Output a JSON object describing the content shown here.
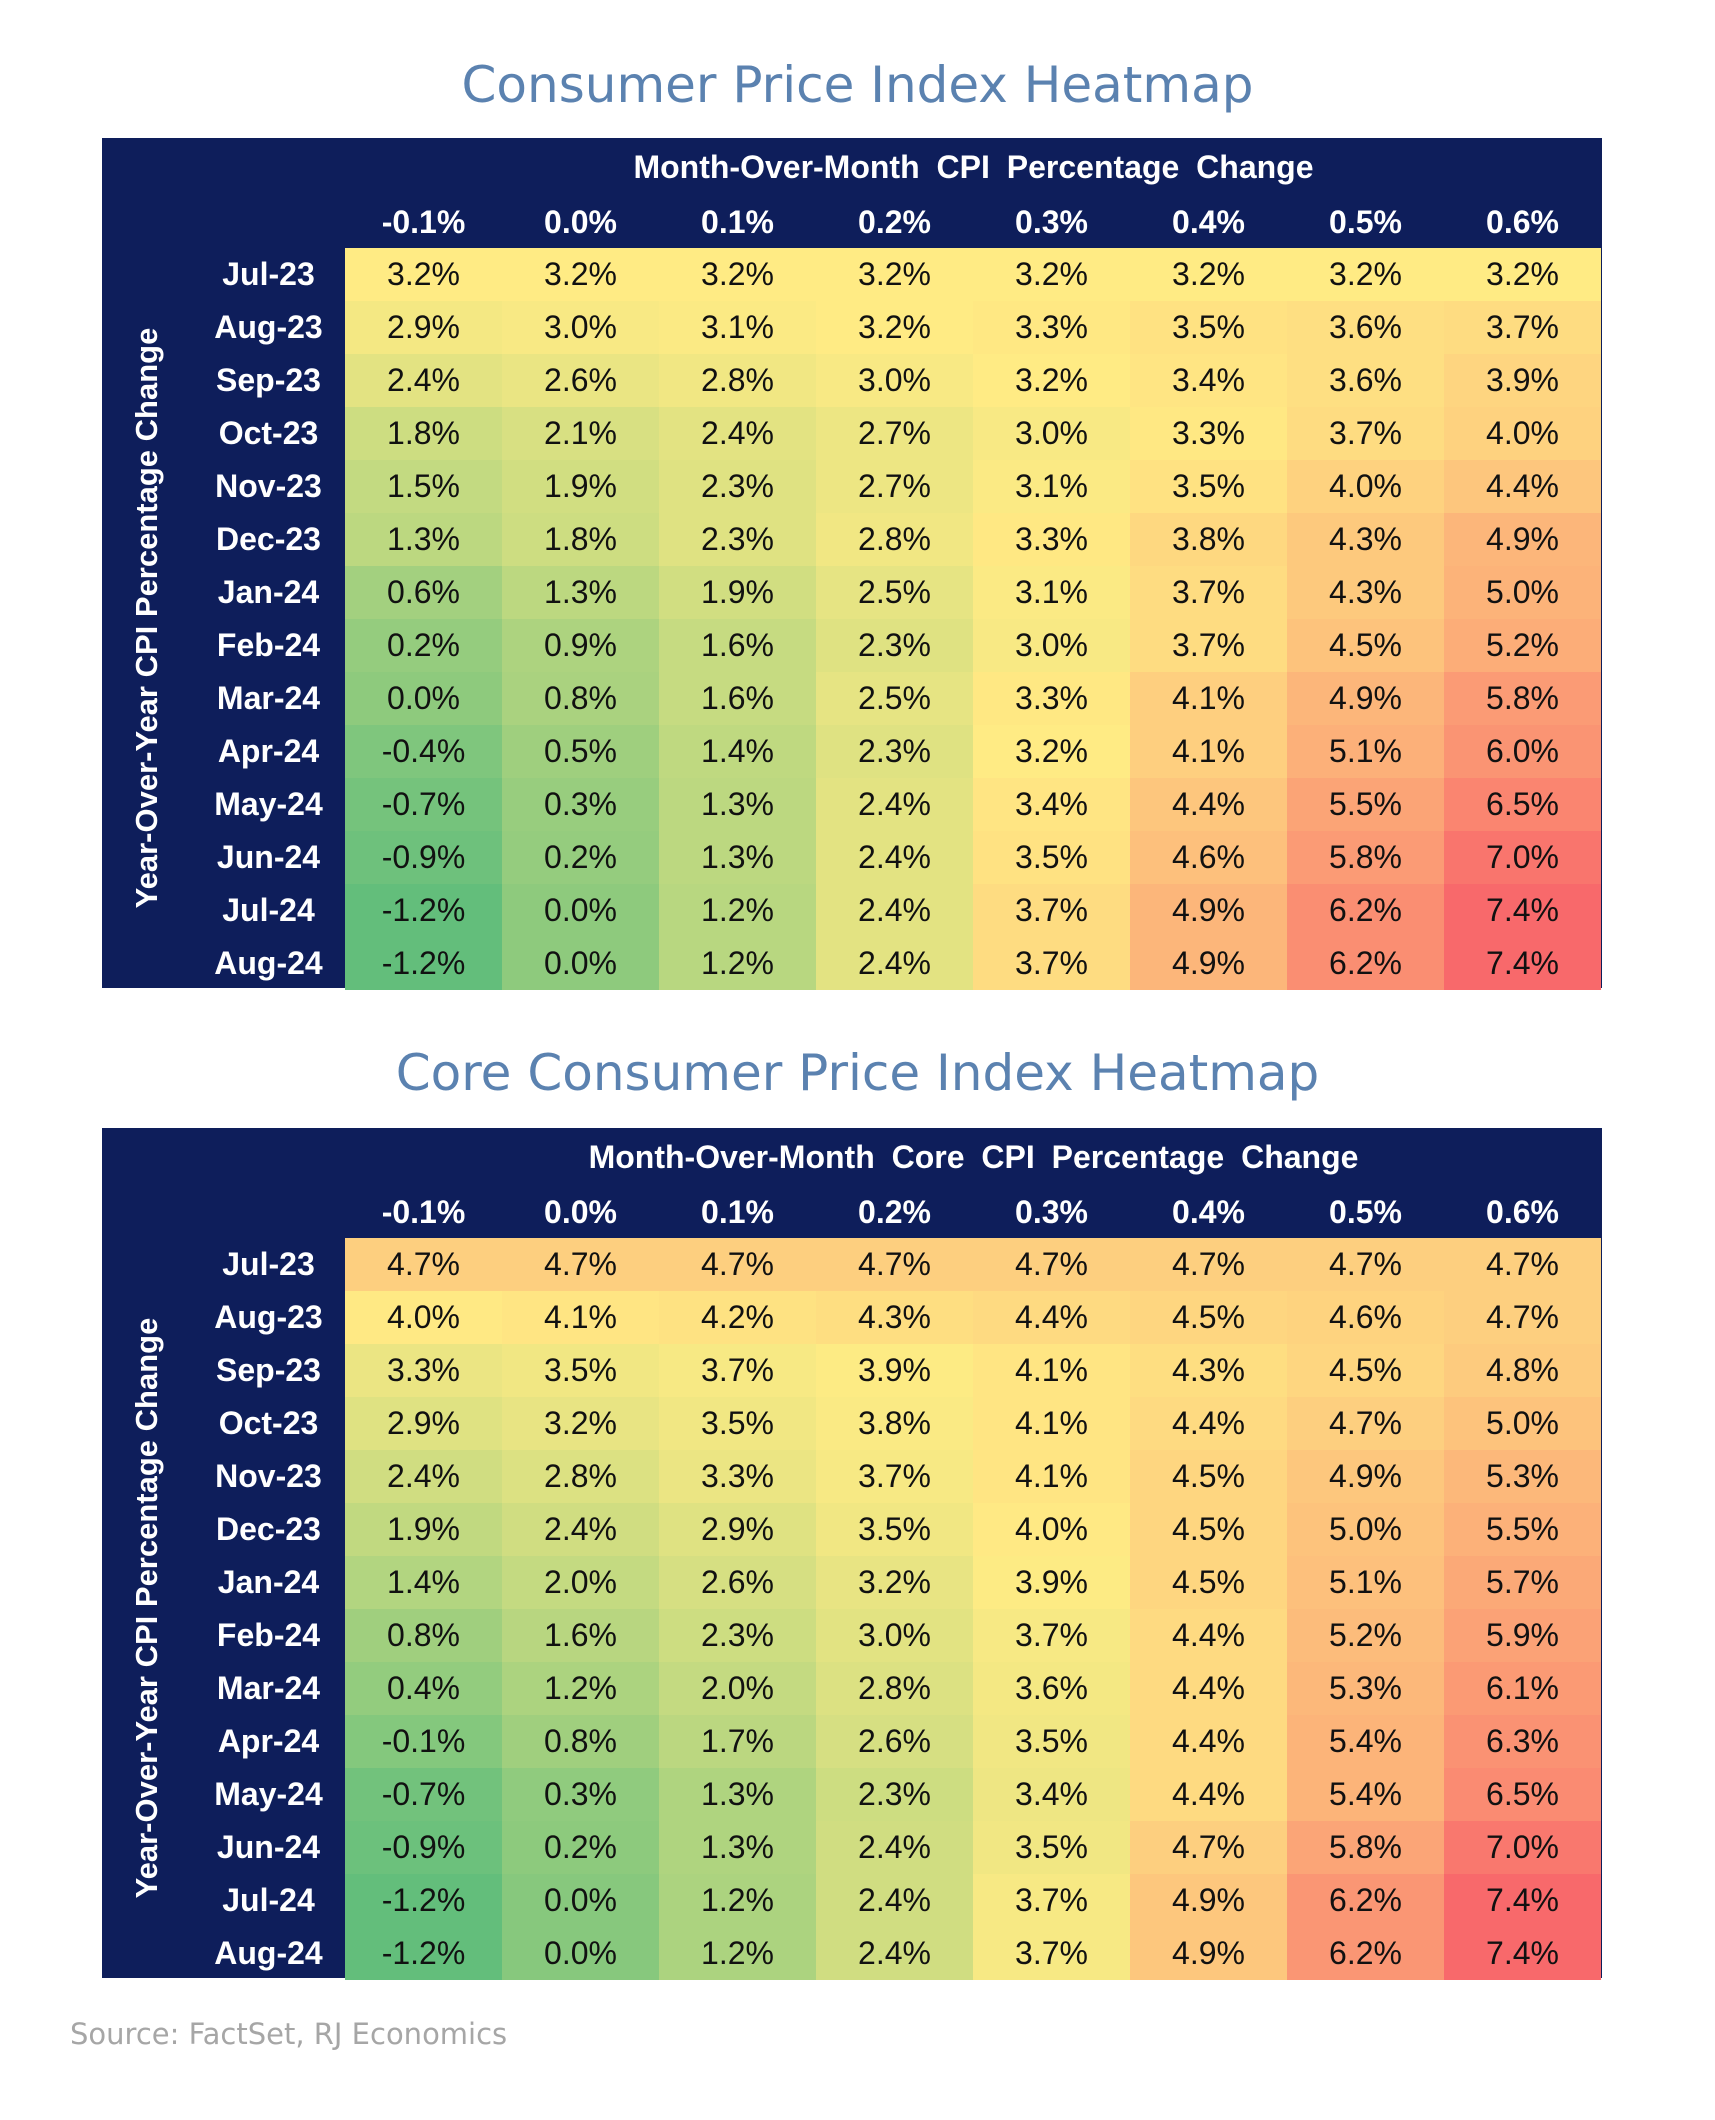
{
  "chart_data": [
    {
      "type": "heatmap",
      "title": "Consumer Price Index Heatmap",
      "xlabel": "Month-Over-Month CPI Percentage Change",
      "ylabel": "Year-Over-Year CPI Percentage Change",
      "columns": [
        "-0.1%",
        "0.0%",
        "0.1%",
        "0.2%",
        "0.3%",
        "0.4%",
        "0.5%",
        "0.6%"
      ],
      "rows": [
        "Jul-23",
        "Aug-23",
        "Sep-23",
        "Oct-23",
        "Nov-23",
        "Dec-23",
        "Jan-24",
        "Feb-24",
        "Mar-24",
        "Apr-24",
        "May-24",
        "Jun-24",
        "Jul-24",
        "Aug-24"
      ],
      "values": [
        [
          3.2,
          3.2,
          3.2,
          3.2,
          3.2,
          3.2,
          3.2,
          3.2
        ],
        [
          2.9,
          3.0,
          3.1,
          3.2,
          3.3,
          3.5,
          3.6,
          3.7
        ],
        [
          2.4,
          2.6,
          2.8,
          3.0,
          3.2,
          3.4,
          3.6,
          3.9
        ],
        [
          1.8,
          2.1,
          2.4,
          2.7,
          3.0,
          3.3,
          3.7,
          4.0
        ],
        [
          1.5,
          1.9,
          2.3,
          2.7,
          3.1,
          3.5,
          4.0,
          4.4
        ],
        [
          1.3,
          1.8,
          2.3,
          2.8,
          3.3,
          3.8,
          4.3,
          4.9
        ],
        [
          0.6,
          1.3,
          1.9,
          2.5,
          3.1,
          3.7,
          4.3,
          5.0
        ],
        [
          0.2,
          0.9,
          1.6,
          2.3,
          3.0,
          3.7,
          4.5,
          5.2
        ],
        [
          0.0,
          0.8,
          1.6,
          2.5,
          3.3,
          4.1,
          4.9,
          5.8
        ],
        [
          -0.4,
          0.5,
          1.4,
          2.3,
          3.2,
          4.1,
          5.1,
          6.0
        ],
        [
          -0.7,
          0.3,
          1.3,
          2.4,
          3.4,
          4.4,
          5.5,
          6.5
        ],
        [
          -0.9,
          0.2,
          1.3,
          2.4,
          3.5,
          4.6,
          5.8,
          7.0
        ],
        [
          -1.2,
          0.0,
          1.2,
          2.4,
          3.7,
          4.9,
          6.2,
          7.4
        ],
        [
          -1.2,
          0.0,
          1.2,
          2.4,
          3.7,
          4.9,
          6.2,
          7.4
        ]
      ]
    },
    {
      "type": "heatmap",
      "title": "Core Consumer Price Index Heatmap",
      "xlabel": "Month-Over-Month Core CPI Percentage Change",
      "ylabel": "Year-Over-Year CPI Percentage Change",
      "columns": [
        "-0.1%",
        "0.0%",
        "0.1%",
        "0.2%",
        "0.3%",
        "0.4%",
        "0.5%",
        "0.6%"
      ],
      "rows": [
        "Jul-23",
        "Aug-23",
        "Sep-23",
        "Oct-23",
        "Nov-23",
        "Dec-23",
        "Jan-24",
        "Feb-24",
        "Mar-24",
        "Apr-24",
        "May-24",
        "Jun-24",
        "Jul-24",
        "Aug-24"
      ],
      "values": [
        [
          4.7,
          4.7,
          4.7,
          4.7,
          4.7,
          4.7,
          4.7,
          4.7
        ],
        [
          4.0,
          4.1,
          4.2,
          4.3,
          4.4,
          4.5,
          4.6,
          4.7
        ],
        [
          3.3,
          3.5,
          3.7,
          3.9,
          4.1,
          4.3,
          4.5,
          4.8
        ],
        [
          2.9,
          3.2,
          3.5,
          3.8,
          4.1,
          4.4,
          4.7,
          5.0
        ],
        [
          2.4,
          2.8,
          3.3,
          3.7,
          4.1,
          4.5,
          4.9,
          5.3
        ],
        [
          1.9,
          2.4,
          2.9,
          3.5,
          4.0,
          4.5,
          5.0,
          5.5
        ],
        [
          1.4,
          2.0,
          2.6,
          3.2,
          3.9,
          4.5,
          5.1,
          5.7
        ],
        [
          0.8,
          1.6,
          2.3,
          3.0,
          3.7,
          4.4,
          5.2,
          5.9
        ],
        [
          0.4,
          1.2,
          2.0,
          2.8,
          3.6,
          4.4,
          5.3,
          6.1
        ],
        [
          -0.1,
          0.8,
          1.7,
          2.6,
          3.5,
          4.4,
          5.4,
          6.3
        ],
        [
          -0.7,
          0.3,
          1.3,
          2.3,
          3.4,
          4.4,
          5.4,
          6.5
        ],
        [
          -0.9,
          0.2,
          1.3,
          2.4,
          3.5,
          4.7,
          5.8,
          7.0
        ],
        [
          -1.2,
          0.0,
          1.2,
          2.4,
          3.7,
          4.9,
          6.2,
          7.4
        ],
        [
          -1.2,
          0.0,
          1.2,
          2.4,
          3.7,
          4.9,
          6.2,
          7.4
        ]
      ]
    }
  ],
  "colors": {
    "header_background": "#0e1e5b",
    "header_text": "#ffffff",
    "title": "#5b82b0",
    "source": "#a6a6a6",
    "scale_low": "#63be7b",
    "scale_mid": "#ffeb84",
    "scale_high": "#f8696b"
  },
  "source": "Source: FactSet, RJ Economics"
}
